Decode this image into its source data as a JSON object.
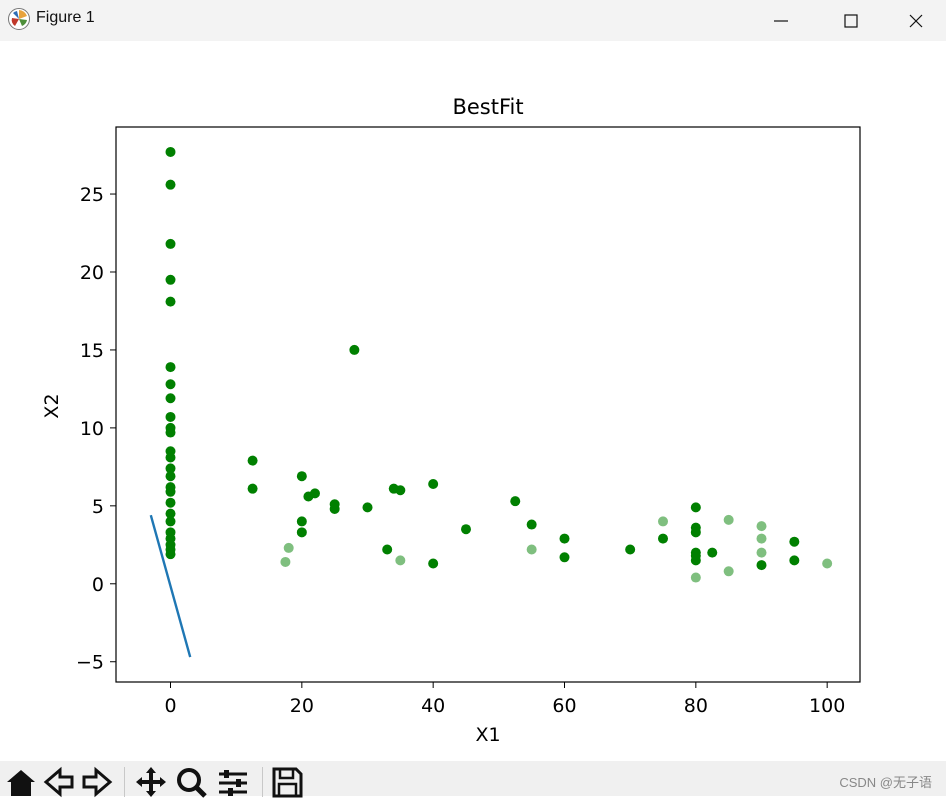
{
  "window": {
    "title": "Figure 1",
    "buttons": {
      "minimize": "minimize-icon",
      "maximize": "maximize-icon",
      "close": "close-icon"
    }
  },
  "toolbar": {
    "tools": [
      "home-icon",
      "back-arrow-icon",
      "forward-arrow-icon",
      "pan-icon",
      "zoom-icon",
      "configure-subplots-icon",
      "save-icon"
    ],
    "watermark": "CSDN @无子语"
  },
  "chart_data": {
    "type": "scatter",
    "title": "BestFit",
    "xlabel": "X1",
    "ylabel": "X2",
    "xlim": [
      -8.3,
      105
    ],
    "ylim": [
      -6.3,
      29.3
    ],
    "xticks": [
      0,
      20,
      40,
      60,
      80,
      100
    ],
    "yticks": [
      -5,
      0,
      5,
      10,
      15,
      20,
      25
    ],
    "grid": false,
    "point_color": "#008000",
    "line_color": "#1f77b4",
    "points": [
      [
        0,
        27.7
      ],
      [
        0,
        25.6
      ],
      [
        0,
        21.8
      ],
      [
        0,
        19.5
      ],
      [
        0,
        18.1
      ],
      [
        0,
        13.9
      ],
      [
        0,
        12.8
      ],
      [
        0,
        11.9
      ],
      [
        0,
        10.7
      ],
      [
        0,
        10.0
      ],
      [
        0,
        9.7
      ],
      [
        0,
        8.5
      ],
      [
        0,
        8.1
      ],
      [
        0,
        7.4
      ],
      [
        0,
        6.9
      ],
      [
        0,
        6.2
      ],
      [
        0,
        5.9
      ],
      [
        0,
        5.2
      ],
      [
        0,
        4.5
      ],
      [
        0,
        4.0
      ],
      [
        0,
        3.3
      ],
      [
        0,
        2.9
      ],
      [
        0,
        2.5
      ],
      [
        0,
        2.2
      ],
      [
        0,
        1.9
      ],
      [
        12.5,
        7.9
      ],
      [
        12.5,
        6.1
      ],
      [
        20,
        6.9
      ],
      [
        20,
        4.0
      ],
      [
        20,
        3.3
      ],
      [
        21,
        5.6
      ],
      [
        22,
        5.8
      ],
      [
        25,
        5.1
      ],
      [
        25,
        4.8
      ],
      [
        28,
        15.0
      ],
      [
        30,
        4.9
      ],
      [
        33,
        2.2
      ],
      [
        34,
        6.1
      ],
      [
        35,
        6.0
      ],
      [
        40,
        6.4
      ],
      [
        40,
        1.3
      ],
      [
        45,
        3.5
      ],
      [
        52.5,
        5.3
      ],
      [
        55,
        3.8
      ],
      [
        60,
        2.9
      ],
      [
        60,
        1.7
      ],
      [
        70,
        2.2
      ],
      [
        75,
        2.9
      ],
      [
        80,
        4.9
      ],
      [
        80,
        3.6
      ],
      [
        80,
        3.3
      ],
      [
        80,
        2.0
      ],
      [
        80,
        1.8
      ],
      [
        80,
        1.5
      ],
      [
        82.5,
        2.0
      ],
      [
        90,
        1.2
      ],
      [
        95,
        2.7
      ],
      [
        95,
        1.5
      ]
    ],
    "faint_points": [
      [
        17.5,
        1.4
      ],
      [
        18,
        2.3
      ],
      [
        35,
        1.5
      ],
      [
        55,
        2.2
      ],
      [
        75,
        4.0
      ],
      [
        80,
        0.4
      ],
      [
        85,
        4.1
      ],
      [
        85,
        0.8
      ],
      [
        90,
        3.7
      ],
      [
        90,
        2.9
      ],
      [
        90,
        2.0
      ],
      [
        100,
        1.3
      ]
    ],
    "line": {
      "x": [
        -3,
        3
      ],
      "y": [
        4.4,
        -4.7
      ]
    }
  }
}
